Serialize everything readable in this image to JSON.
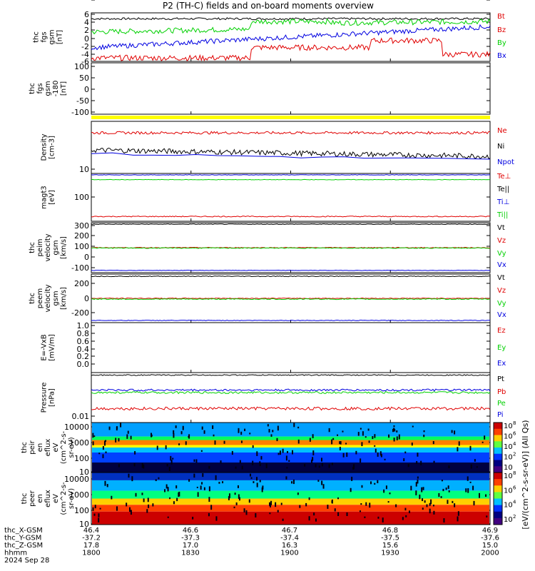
{
  "title": "P2 (TH-C) fields and on-board moments overview",
  "colors": {
    "black": "#000000",
    "red": "#e00000",
    "green": "#00d000",
    "blue": "#0000e0",
    "yellow": "#ffff00"
  },
  "chart_data": [
    {
      "type": "line",
      "id": "fgs",
      "ylabel": [
        "thc",
        "fgs",
        "gsm",
        "[nT]"
      ],
      "ylim": [
        -7,
        7
      ],
      "ticks": [
        "6",
        "4",
        "2",
        "0",
        "-2",
        "-4",
        "-6"
      ],
      "series": [
        {
          "name": "Bt",
          "color": "red"
        },
        {
          "name": "Bz",
          "color": "red"
        },
        {
          "name": "By",
          "color": "green"
        },
        {
          "name": "Bx",
          "color": "blue"
        }
      ]
    },
    {
      "type": "line",
      "id": "fgs_dsl",
      "ylabel": [
        "thc",
        "fgs",
        "gsm",
        "-180",
        "[nT]"
      ],
      "ylim": [
        -130,
        100
      ],
      "ticks": [
        "100",
        "50",
        "0",
        "-50",
        "-100"
      ],
      "series": []
    },
    {
      "type": "line",
      "id": "density",
      "ylabel": [
        "Density",
        "[cm-3]"
      ],
      "scale": "log",
      "ticks": [
        "10"
      ],
      "series": [
        {
          "name": "Ne",
          "color": "red"
        },
        {
          "name": "Ni",
          "color": "black"
        },
        {
          "name": "Npot",
          "color": "blue"
        }
      ]
    },
    {
      "type": "line",
      "id": "temp",
      "ylabel": [
        "magt3",
        "[eV]"
      ],
      "scale": "log",
      "ticks": [
        "100"
      ],
      "series": [
        {
          "name": "Te⊥",
          "color": "red"
        },
        {
          "name": "Te||",
          "color": "black"
        },
        {
          "name": "Ti⊥",
          "color": "blue"
        },
        {
          "name": "Ti||",
          "color": "green"
        }
      ]
    },
    {
      "type": "line",
      "id": "peim_v",
      "ylabel": [
        "thc",
        "peim",
        "velocity",
        "gsm",
        "[km/s]"
      ],
      "ylim": [
        -330,
        330
      ],
      "ticks": [
        "300",
        "200",
        "100",
        "0",
        "-100",
        "-200",
        "-300"
      ],
      "series": [
        {
          "name": "Vt",
          "color": "black"
        },
        {
          "name": "Vz",
          "color": "red"
        },
        {
          "name": "Vy",
          "color": "green"
        },
        {
          "name": "Vx",
          "color": "blue"
        }
      ]
    },
    {
      "type": "line",
      "id": "peem_v",
      "ylabel": [
        "thc",
        "peem",
        "velocity",
        "gsm",
        "[km/s]"
      ],
      "ylim": [
        -330,
        330
      ],
      "ticks": [
        "200",
        "0",
        "-200"
      ],
      "series": [
        {
          "name": "Vt",
          "color": "black"
        },
        {
          "name": "Vz",
          "color": "red"
        },
        {
          "name": "Vy",
          "color": "green"
        },
        {
          "name": "Vx",
          "color": "blue"
        }
      ]
    },
    {
      "type": "line",
      "id": "efield",
      "ylabel": [
        "E=-VxB",
        "[mV/m]"
      ],
      "ylim": [
        -0.05,
        1.05
      ],
      "ticks": [
        "1.0",
        "0.8",
        "0.6",
        "0.4",
        "0.2",
        "0.0"
      ],
      "series": [
        {
          "name": "Ez",
          "color": "red"
        },
        {
          "name": "Ey",
          "color": "green"
        },
        {
          "name": "Ex",
          "color": "blue"
        }
      ]
    },
    {
      "type": "line",
      "id": "pressure",
      "ylabel": [
        "Pressure",
        "[nPa]"
      ],
      "scale": "log",
      "ticks": [
        "0.01"
      ],
      "series": [
        {
          "name": "Pt",
          "color": "black"
        },
        {
          "name": "Pb",
          "color": "red"
        },
        {
          "name": "Pe",
          "color": "green"
        },
        {
          "name": "Pi",
          "color": "blue"
        }
      ]
    },
    {
      "type": "heatmap",
      "id": "peir",
      "ylabel": [
        "thc",
        "peir",
        "en",
        "eflux",
        "eV",
        "(cm^2-s-",
        "sr-eV)"
      ],
      "scale": "log",
      "ticks": [
        "10000",
        "1000",
        "100",
        "10"
      ]
    },
    {
      "type": "heatmap",
      "id": "peer",
      "ylabel": [
        "thc",
        "peer",
        "en",
        "eflux",
        "eV",
        "(cm^2-s-",
        "sr-eV)"
      ],
      "scale": "log",
      "ticks": [
        "10000",
        "1000",
        "100",
        "10"
      ]
    }
  ],
  "colorbar": {
    "label": "[eV/(cm^2-s-sr-eV)] (All Qs)",
    "top_ticks": [
      "10",
      "10",
      "10",
      "10",
      "10"
    ],
    "top_exp": [
      "8",
      "6",
      "4",
      "2",
      ""
    ],
    "bottom_ticks": [
      "10",
      "10",
      "10",
      "10"
    ],
    "bottom_exp": [
      "8",
      "6",
      "4",
      "2"
    ]
  },
  "xaxis": {
    "rows": [
      {
        "label": "thc_X-GSM",
        "values": [
          "46.4",
          "46.6",
          "46.7",
          "46.8",
          "46.9"
        ]
      },
      {
        "label": "thc_Y-GSM",
        "values": [
          "-37.2",
          "-37.3",
          "-37.4",
          "-37.5",
          "-37.6"
        ]
      },
      {
        "label": "thc_Z-GSM",
        "values": [
          "17.8",
          "17.0",
          "16.3",
          "15.6",
          "15.0"
        ]
      },
      {
        "label": "hhmm",
        "values": [
          "1800",
          "1830",
          "1900",
          "1930",
          "2000"
        ]
      }
    ],
    "date": "2024 Sep 28"
  }
}
